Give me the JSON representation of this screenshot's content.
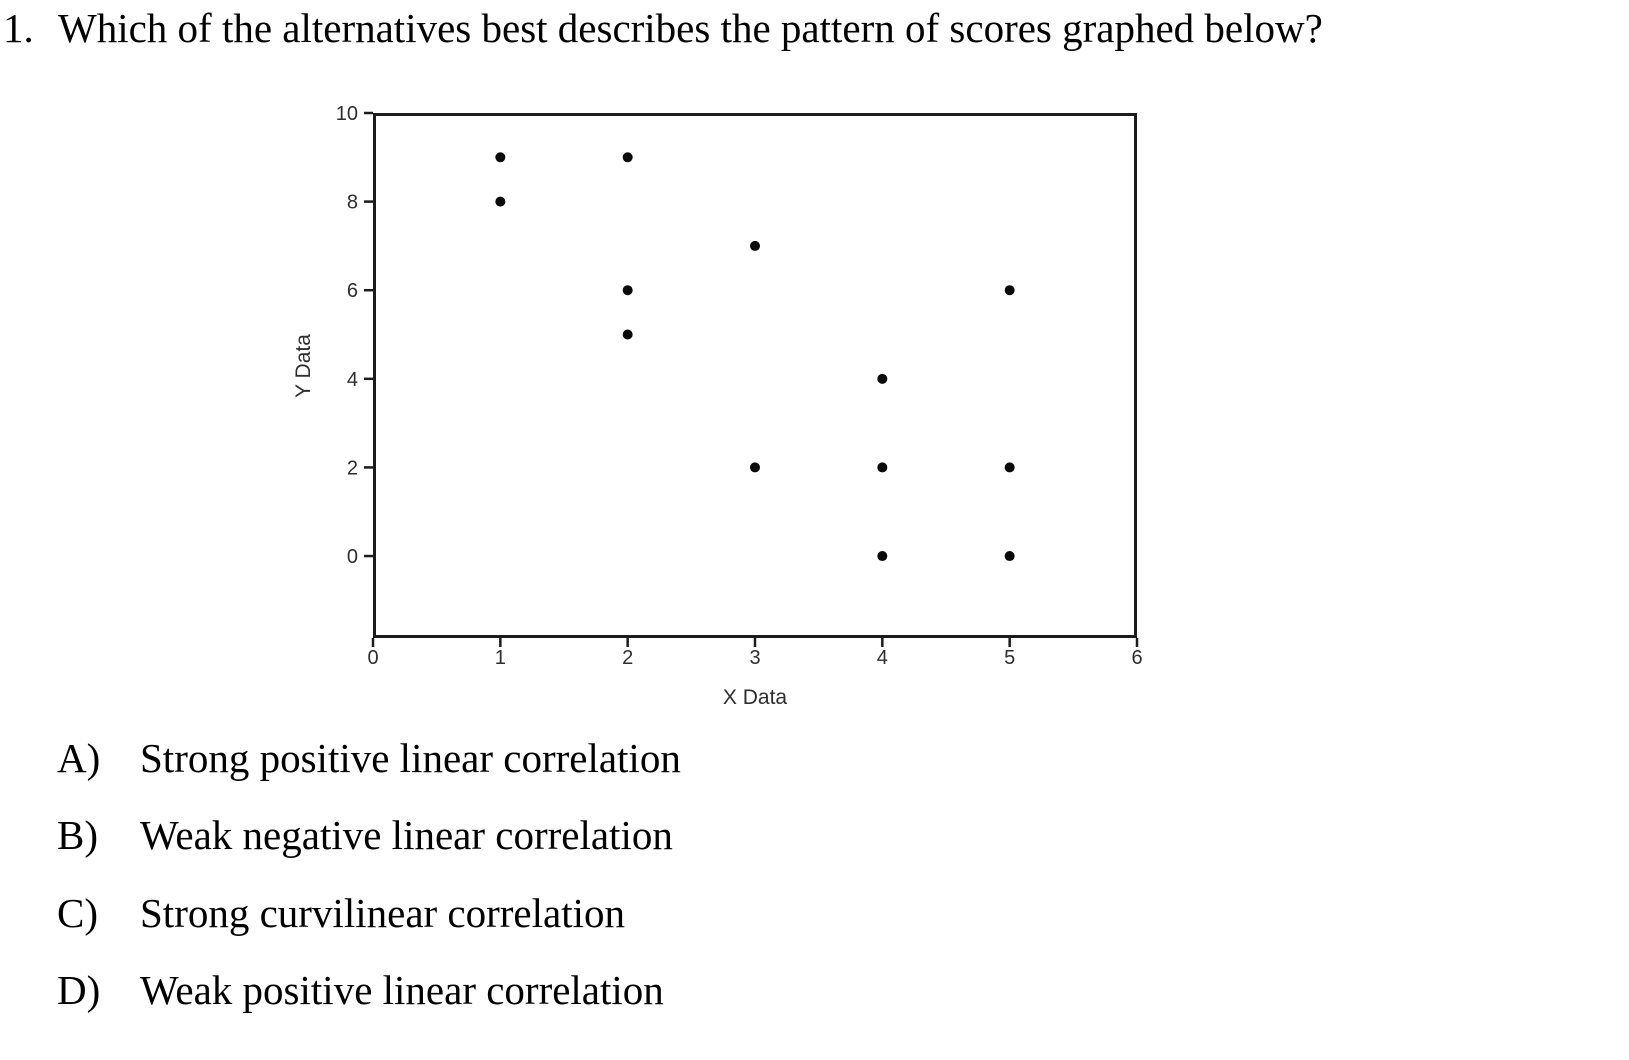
{
  "question": {
    "number": "1.",
    "text": "Which of the alternatives best describes the pattern of scores graphed below?"
  },
  "chart_data": {
    "type": "scatter",
    "title": "",
    "xlabel": "X Data",
    "ylabel": "Y Data",
    "xlim": [
      0,
      6
    ],
    "ylim": [
      -1.85,
      10
    ],
    "xticks": [
      0,
      1,
      2,
      3,
      4,
      5,
      6
    ],
    "yticks": [
      0,
      2,
      4,
      6,
      8,
      10
    ],
    "grid": false,
    "legend": false,
    "points": [
      {
        "x": 1,
        "y": 9
      },
      {
        "x": 1,
        "y": 8
      },
      {
        "x": 2,
        "y": 9
      },
      {
        "x": 2,
        "y": 6
      },
      {
        "x": 2,
        "y": 5
      },
      {
        "x": 3,
        "y": 7
      },
      {
        "x": 3,
        "y": 2
      },
      {
        "x": 4,
        "y": 4
      },
      {
        "x": 4,
        "y": 2
      },
      {
        "x": 4,
        "y": 0
      },
      {
        "x": 5,
        "y": 6
      },
      {
        "x": 5,
        "y": 2
      },
      {
        "x": 5,
        "y": 0
      }
    ],
    "marker": {
      "shape": "circle",
      "color": "#0a0a0a",
      "radius_px": 5
    }
  },
  "options": [
    {
      "label": "A)",
      "text": "Strong positive linear correlation"
    },
    {
      "label": "B)",
      "text": "Weak negative linear correlation"
    },
    {
      "label": "C)",
      "text": "Strong curvilinear correlation"
    },
    {
      "label": "D)",
      "text": "Weak positive linear correlation"
    }
  ],
  "colors": {
    "ink": "#000000",
    "axis_ink": "#1c1c1c",
    "axis_text": "#2e2e2e",
    "background": "#ffffff"
  }
}
